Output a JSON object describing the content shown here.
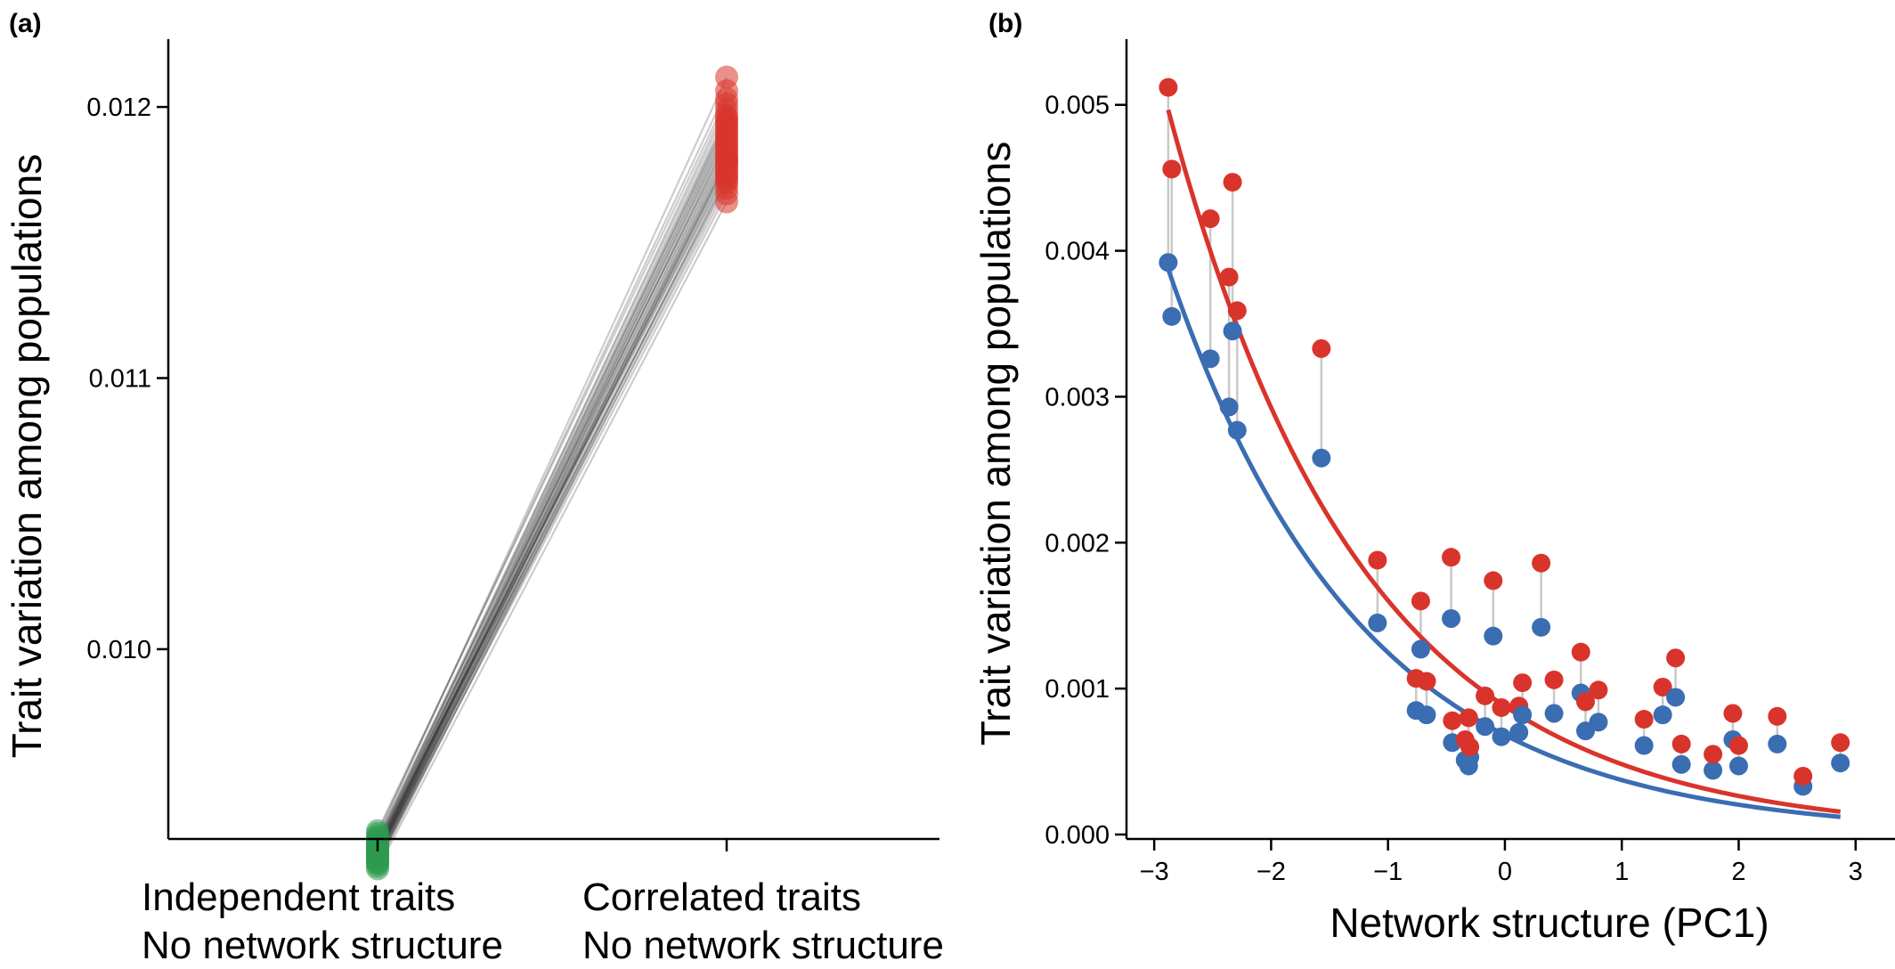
{
  "chart_data": [
    {
      "panel": "(a)",
      "type": "scatter",
      "xlabel": "",
      "ylabel": "Trait variation among populations",
      "categories": [
        [
          "Independent traits",
          "No network structure"
        ],
        [
          "Correlated traits",
          "No network structure"
        ]
      ],
      "ylim": [
        0.0093,
        0.01225
      ],
      "yticks": [
        0.01,
        0.011,
        0.012
      ],
      "ytick_labels": [
        "0.010",
        "0.011",
        "0.012"
      ],
      "grid": false,
      "colors": {
        "independent": "#2e9a4f",
        "correlated": "#d9342b",
        "pair_line": "#000000"
      },
      "paired_values": [
        [
          0.00931,
          0.01211
        ],
        [
          0.00932,
          0.01206
        ],
        [
          0.00933,
          0.01203
        ],
        [
          0.00928,
          0.01201
        ],
        [
          0.0093,
          0.01199
        ],
        [
          0.00929,
          0.01197
        ],
        [
          0.00927,
          0.01196
        ],
        [
          0.00926,
          0.01195
        ],
        [
          0.0093,
          0.01194
        ],
        [
          0.00925,
          0.01193
        ],
        [
          0.00928,
          0.01192
        ],
        [
          0.00924,
          0.01191
        ],
        [
          0.00927,
          0.0119
        ],
        [
          0.00926,
          0.01189
        ],
        [
          0.00923,
          0.01188
        ],
        [
          0.00925,
          0.01187
        ],
        [
          0.00929,
          0.01186
        ],
        [
          0.00924,
          0.01185
        ],
        [
          0.00926,
          0.01184
        ],
        [
          0.00922,
          0.01183
        ],
        [
          0.00925,
          0.01182
        ],
        [
          0.00923,
          0.01181
        ],
        [
          0.00927,
          0.0118
        ],
        [
          0.00921,
          0.0118
        ],
        [
          0.00924,
          0.01179
        ],
        [
          0.00926,
          0.01178
        ],
        [
          0.00922,
          0.01177
        ],
        [
          0.00928,
          0.01176
        ],
        [
          0.0092,
          0.01175
        ],
        [
          0.00923,
          0.01174
        ],
        [
          0.00925,
          0.01173
        ],
        [
          0.00921,
          0.01172
        ],
        [
          0.00924,
          0.0117
        ],
        [
          0.00922,
          0.01168
        ],
        [
          0.00919,
          0.01165
        ]
      ]
    },
    {
      "panel": "(b)",
      "type": "scatter",
      "xlabel": "Network structure (PC1)",
      "ylabel": "Trait variation among populations",
      "xlim": [
        -3.1,
        3.2
      ],
      "ylim": [
        0.0,
        0.00545
      ],
      "xticks": [
        -3,
        -2,
        -1,
        0,
        1,
        2,
        3
      ],
      "xtick_labels": [
        "−3",
        "−2",
        "−1",
        "0",
        "1",
        "2",
        "3"
      ],
      "yticks": [
        0.0,
        0.001,
        0.002,
        0.003,
        0.004,
        0.005
      ],
      "ytick_labels": [
        "0.000",
        "0.001",
        "0.002",
        "0.003",
        "0.004",
        "0.005"
      ],
      "grid": false,
      "colors": {
        "red": "#d9342b",
        "blue": "#3a6db2",
        "pair_line": "#c8c8c8"
      },
      "points": [
        {
          "x": -2.88,
          "red": 0.00512,
          "blue": 0.00392
        },
        {
          "x": -2.85,
          "red": 0.00456,
          "blue": 0.00355
        },
        {
          "x": -2.52,
          "red": 0.00422,
          "blue": 0.00326
        },
        {
          "x": -2.36,
          "red": 0.00382,
          "blue": 0.00293
        },
        {
          "x": -2.33,
          "red": 0.00447,
          "blue": 0.00345
        },
        {
          "x": -2.29,
          "red": 0.00359,
          "blue": 0.00277
        },
        {
          "x": -1.57,
          "red": 0.00333,
          "blue": 0.00258
        },
        {
          "x": -1.09,
          "red": 0.00188,
          "blue": 0.00145
        },
        {
          "x": -0.76,
          "red": 0.00107,
          "blue": 0.00085
        },
        {
          "x": -0.72,
          "red": 0.0016,
          "blue": 0.00127
        },
        {
          "x": -0.67,
          "red": 0.00105,
          "blue": 0.00082
        },
        {
          "x": -0.46,
          "red": 0.0019,
          "blue": 0.00148
        },
        {
          "x": -0.45,
          "red": 0.00078,
          "blue": 0.00063
        },
        {
          "x": -0.34,
          "red": 0.00065,
          "blue": 0.00051
        },
        {
          "x": -0.31,
          "red": 0.0008,
          "blue": 0.00047
        },
        {
          "x": -0.3,
          "red": 0.0006,
          "blue": 0.00053
        },
        {
          "x": -0.17,
          "red": 0.00095,
          "blue": 0.00074
        },
        {
          "x": -0.1,
          "red": 0.00174,
          "blue": 0.00136
        },
        {
          "x": -0.03,
          "red": 0.00087,
          "blue": 0.00067
        },
        {
          "x": 0.12,
          "red": 0.00088,
          "blue": 0.0007
        },
        {
          "x": 0.15,
          "red": 0.00104,
          "blue": 0.00082
        },
        {
          "x": 0.31,
          "red": 0.00186,
          "blue": 0.00142
        },
        {
          "x": 0.42,
          "red": 0.00106,
          "blue": 0.00083
        },
        {
          "x": 0.65,
          "red": 0.00125,
          "blue": 0.00097
        },
        {
          "x": 0.69,
          "red": 0.00091,
          "blue": 0.00071
        },
        {
          "x": 0.8,
          "red": 0.00099,
          "blue": 0.00077
        },
        {
          "x": 1.19,
          "red": 0.00079,
          "blue": 0.00061
        },
        {
          "x": 1.35,
          "red": 0.00101,
          "blue": 0.00082
        },
        {
          "x": 1.46,
          "red": 0.00121,
          "blue": 0.00094
        },
        {
          "x": 1.51,
          "red": 0.00062,
          "blue": 0.00048
        },
        {
          "x": 1.78,
          "red": 0.00055,
          "blue": 0.00044
        },
        {
          "x": 1.95,
          "red": 0.00083,
          "blue": 0.00065
        },
        {
          "x": 2.0,
          "red": 0.00061,
          "blue": 0.00047
        },
        {
          "x": 2.33,
          "red": 0.00081,
          "blue": 0.00062
        },
        {
          "x": 2.55,
          "red": 0.0004,
          "blue": 0.00033
        },
        {
          "x": 2.87,
          "red": 0.00063,
          "blue": 0.00049
        }
      ],
      "fit_lines": [
        {
          "color": "red",
          "model": "exponential",
          "a": 0.000879,
          "b": -0.6012,
          "x_range": [
            -2.88,
            2.87
          ]
        },
        {
          "color": "blue",
          "model": "exponential",
          "a": 0.000682,
          "b": -0.6031,
          "x_range": [
            -2.88,
            2.87
          ]
        }
      ]
    }
  ]
}
